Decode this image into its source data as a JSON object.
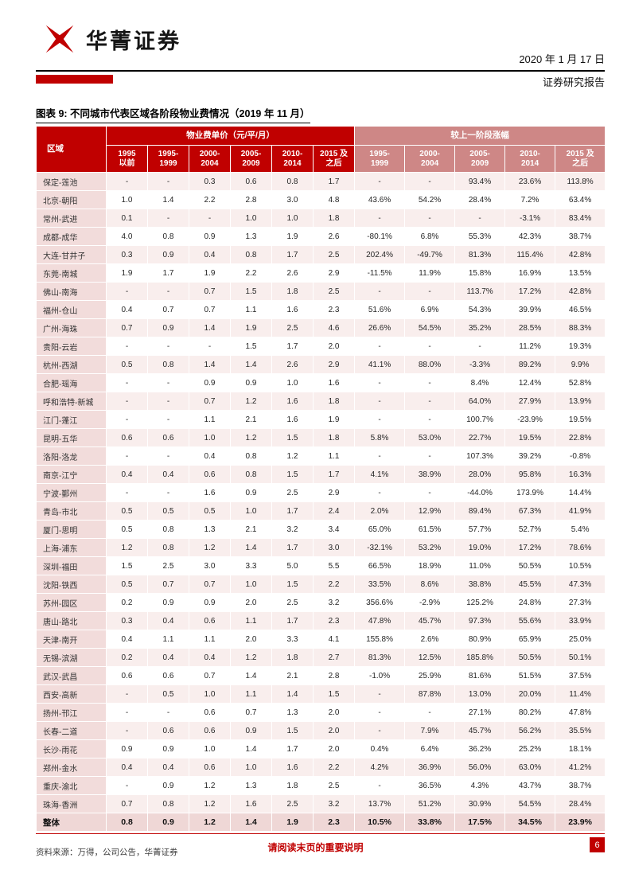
{
  "header": {
    "logo_text": "华菁证券",
    "date": "2020 年 1 月 17 日",
    "report_type": "证券研究报告"
  },
  "figure": {
    "title": "图表 9: 不同城市代表区域各阶段物业费情况（2019 年 11 月）"
  },
  "table": {
    "region_header": "区域",
    "price_group_header": "物业费单价（元/平/月）",
    "growth_group_header": "较上一阶段涨幅",
    "price_cols": [
      "1995\n以前",
      "1995-\n1999",
      "2000-\n2004",
      "2005-\n2009",
      "2010-\n2014",
      "2015 及\n之后"
    ],
    "growth_cols": [
      "1995-\n1999",
      "2000-\n2004",
      "2005-\n2009",
      "2010-\n2014",
      "2015 及\n之后"
    ],
    "rows": [
      {
        "region": "保定-莲池",
        "prices": [
          "-",
          "-",
          "0.3",
          "0.6",
          "0.8",
          "1.7"
        ],
        "growth": [
          "-",
          "-",
          "93.4%",
          "23.6%",
          "113.8%"
        ]
      },
      {
        "region": "北京-朝阳",
        "prices": [
          "1.0",
          "1.4",
          "2.2",
          "2.8",
          "3.0",
          "4.8"
        ],
        "growth": [
          "43.6%",
          "54.2%",
          "28.4%",
          "7.2%",
          "63.4%"
        ]
      },
      {
        "region": "常州-武进",
        "prices": [
          "0.1",
          "-",
          "-",
          "1.0",
          "1.0",
          "1.8"
        ],
        "growth": [
          "-",
          "-",
          "-",
          "-3.1%",
          "83.4%"
        ]
      },
      {
        "region": "成都-成华",
        "prices": [
          "4.0",
          "0.8",
          "0.9",
          "1.3",
          "1.9",
          "2.6"
        ],
        "growth": [
          "-80.1%",
          "6.8%",
          "55.3%",
          "42.3%",
          "38.7%"
        ]
      },
      {
        "region": "大连-甘井子",
        "prices": [
          "0.3",
          "0.9",
          "0.4",
          "0.8",
          "1.7",
          "2.5"
        ],
        "growth": [
          "202.4%",
          "-49.7%",
          "81.3%",
          "115.4%",
          "42.8%"
        ]
      },
      {
        "region": "东莞-南城",
        "prices": [
          "1.9",
          "1.7",
          "1.9",
          "2.2",
          "2.6",
          "2.9"
        ],
        "growth": [
          "-11.5%",
          "11.9%",
          "15.8%",
          "16.9%",
          "13.5%"
        ]
      },
      {
        "region": "佛山-南海",
        "prices": [
          "-",
          "-",
          "0.7",
          "1.5",
          "1.8",
          "2.5"
        ],
        "growth": [
          "-",
          "-",
          "113.7%",
          "17.2%",
          "42.8%"
        ]
      },
      {
        "region": "福州-仓山",
        "prices": [
          "0.4",
          "0.7",
          "0.7",
          "1.1",
          "1.6",
          "2.3"
        ],
        "growth": [
          "51.6%",
          "6.9%",
          "54.3%",
          "39.9%",
          "46.5%"
        ]
      },
      {
        "region": "广州-海珠",
        "prices": [
          "0.7",
          "0.9",
          "1.4",
          "1.9",
          "2.5",
          "4.6"
        ],
        "growth": [
          "26.6%",
          "54.5%",
          "35.2%",
          "28.5%",
          "88.3%"
        ]
      },
      {
        "region": "贵阳-云岩",
        "prices": [
          "-",
          "-",
          "-",
          "1.5",
          "1.7",
          "2.0"
        ],
        "growth": [
          "-",
          "-",
          "-",
          "11.2%",
          "19.3%"
        ]
      },
      {
        "region": "杭州-西湖",
        "prices": [
          "0.5",
          "0.8",
          "1.4",
          "1.4",
          "2.6",
          "2.9"
        ],
        "growth": [
          "41.1%",
          "88.0%",
          "-3.3%",
          "89.2%",
          "9.9%"
        ]
      },
      {
        "region": "合肥-瑶海",
        "prices": [
          "-",
          "-",
          "0.9",
          "0.9",
          "1.0",
          "1.6"
        ],
        "growth": [
          "-",
          "-",
          "8.4%",
          "12.4%",
          "52.8%"
        ]
      },
      {
        "region": "呼和浩特-新城",
        "prices": [
          "-",
          "-",
          "0.7",
          "1.2",
          "1.6",
          "1.8"
        ],
        "growth": [
          "-",
          "-",
          "64.0%",
          "27.9%",
          "13.9%"
        ]
      },
      {
        "region": "江门-蓬江",
        "prices": [
          "-",
          "-",
          "1.1",
          "2.1",
          "1.6",
          "1.9"
        ],
        "growth": [
          "-",
          "-",
          "100.7%",
          "-23.9%",
          "19.5%"
        ]
      },
      {
        "region": "昆明-五华",
        "prices": [
          "0.6",
          "0.6",
          "1.0",
          "1.2",
          "1.5",
          "1.8"
        ],
        "growth": [
          "5.8%",
          "53.0%",
          "22.7%",
          "19.5%",
          "22.8%"
        ]
      },
      {
        "region": "洛阳-洛龙",
        "prices": [
          "-",
          "-",
          "0.4",
          "0.8",
          "1.2",
          "1.1"
        ],
        "growth": [
          "-",
          "-",
          "107.3%",
          "39.2%",
          "-0.8%"
        ]
      },
      {
        "region": "南京-江宁",
        "prices": [
          "0.4",
          "0.4",
          "0.6",
          "0.8",
          "1.5",
          "1.7"
        ],
        "growth": [
          "4.1%",
          "38.9%",
          "28.0%",
          "95.8%",
          "16.3%"
        ]
      },
      {
        "region": "宁波-鄞州",
        "prices": [
          "-",
          "-",
          "1.6",
          "0.9",
          "2.5",
          "2.9"
        ],
        "growth": [
          "-",
          "-",
          "-44.0%",
          "173.9%",
          "14.4%"
        ]
      },
      {
        "region": "青岛-市北",
        "prices": [
          "0.5",
          "0.5",
          "0.5",
          "1.0",
          "1.7",
          "2.4"
        ],
        "growth": [
          "2.0%",
          "12.9%",
          "89.4%",
          "67.3%",
          "41.9%"
        ]
      },
      {
        "region": "厦门-思明",
        "prices": [
          "0.5",
          "0.8",
          "1.3",
          "2.1",
          "3.2",
          "3.4"
        ],
        "growth": [
          "65.0%",
          "61.5%",
          "57.7%",
          "52.7%",
          "5.4%"
        ]
      },
      {
        "region": "上海-浦东",
        "prices": [
          "1.2",
          "0.8",
          "1.2",
          "1.4",
          "1.7",
          "3.0"
        ],
        "growth": [
          "-32.1%",
          "53.2%",
          "19.0%",
          "17.2%",
          "78.6%"
        ]
      },
      {
        "region": "深圳-福田",
        "prices": [
          "1.5",
          "2.5",
          "3.0",
          "3.3",
          "5.0",
          "5.5"
        ],
        "growth": [
          "66.5%",
          "18.9%",
          "11.0%",
          "50.5%",
          "10.5%"
        ]
      },
      {
        "region": "沈阳-铁西",
        "prices": [
          "0.5",
          "0.7",
          "0.7",
          "1.0",
          "1.5",
          "2.2"
        ],
        "growth": [
          "33.5%",
          "8.6%",
          "38.8%",
          "45.5%",
          "47.3%"
        ]
      },
      {
        "region": "苏州-园区",
        "prices": [
          "0.2",
          "0.9",
          "0.9",
          "2.0",
          "2.5",
          "3.2"
        ],
        "growth": [
          "356.6%",
          "-2.9%",
          "125.2%",
          "24.8%",
          "27.3%"
        ]
      },
      {
        "region": "唐山-路北",
        "prices": [
          "0.3",
          "0.4",
          "0.6",
          "1.1",
          "1.7",
          "2.3"
        ],
        "growth": [
          "47.8%",
          "45.7%",
          "97.3%",
          "55.6%",
          "33.9%"
        ]
      },
      {
        "region": "天津-南开",
        "prices": [
          "0.4",
          "1.1",
          "1.1",
          "2.0",
          "3.3",
          "4.1"
        ],
        "growth": [
          "155.8%",
          "2.6%",
          "80.9%",
          "65.9%",
          "25.0%"
        ]
      },
      {
        "region": "无锡-滨湖",
        "prices": [
          "0.2",
          "0.4",
          "0.4",
          "1.2",
          "1.8",
          "2.7"
        ],
        "growth": [
          "81.3%",
          "12.5%",
          "185.8%",
          "50.5%",
          "50.1%"
        ]
      },
      {
        "region": "武汉-武昌",
        "prices": [
          "0.6",
          "0.6",
          "0.7",
          "1.4",
          "2.1",
          "2.8"
        ],
        "growth": [
          "-1.0%",
          "25.9%",
          "81.6%",
          "51.5%",
          "37.5%"
        ]
      },
      {
        "region": "西安-高新",
        "prices": [
          "-",
          "0.5",
          "1.0",
          "1.1",
          "1.4",
          "1.5"
        ],
        "growth": [
          "-",
          "87.8%",
          "13.0%",
          "20.0%",
          "11.4%"
        ]
      },
      {
        "region": "扬州-邗江",
        "prices": [
          "-",
          "-",
          "0.6",
          "0.7",
          "1.3",
          "2.0"
        ],
        "growth": [
          "-",
          "-",
          "27.1%",
          "80.2%",
          "47.8%"
        ]
      },
      {
        "region": "长春-二道",
        "prices": [
          "-",
          "0.6",
          "0.6",
          "0.9",
          "1.5",
          "2.0"
        ],
        "growth": [
          "-",
          "7.9%",
          "45.7%",
          "56.2%",
          "35.5%"
        ]
      },
      {
        "region": "长沙-雨花",
        "prices": [
          "0.9",
          "0.9",
          "1.0",
          "1.4",
          "1.7",
          "2.0"
        ],
        "growth": [
          "0.4%",
          "6.4%",
          "36.2%",
          "25.2%",
          "18.1%"
        ]
      },
      {
        "region": "郑州-金水",
        "prices": [
          "0.4",
          "0.4",
          "0.6",
          "1.0",
          "1.6",
          "2.2"
        ],
        "growth": [
          "4.2%",
          "36.9%",
          "56.0%",
          "63.0%",
          "41.2%"
        ]
      },
      {
        "region": "重庆-渝北",
        "prices": [
          "-",
          "0.9",
          "1.2",
          "1.3",
          "1.8",
          "2.5"
        ],
        "growth": [
          "-",
          "36.5%",
          "4.3%",
          "43.7%",
          "38.7%"
        ]
      },
      {
        "region": "珠海-香洲",
        "prices": [
          "0.7",
          "0.8",
          "1.2",
          "1.6",
          "2.5",
          "3.2"
        ],
        "growth": [
          "13.7%",
          "51.2%",
          "30.9%",
          "54.5%",
          "28.4%"
        ]
      }
    ],
    "total": {
      "region": "整体",
      "prices": [
        "0.8",
        "0.9",
        "1.2",
        "1.4",
        "1.9",
        "2.3"
      ],
      "growth": [
        "10.5%",
        "33.8%",
        "17.5%",
        "34.5%",
        "23.9%"
      ]
    }
  },
  "source": "资料来源：万得，公司公告，华菁证券",
  "footer": {
    "note": "请阅读末页的重要说明",
    "page_number": "6"
  },
  "colors": {
    "accent_red": "#C00000",
    "header_light_red": "#CE8786",
    "region_col_bg": "#F2DCDB",
    "stripe_bg": "#F9EEED",
    "total_row_bg": "#EFD7D6",
    "text": "#262626"
  }
}
